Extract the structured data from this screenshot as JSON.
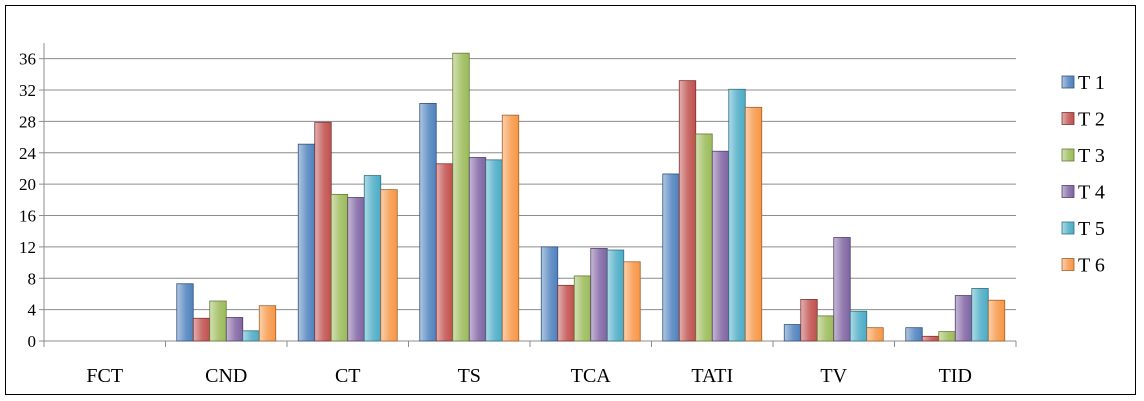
{
  "chart_data": {
    "type": "bar",
    "title": "",
    "xlabel": "",
    "ylabel": "",
    "categories": [
      "FCT",
      "CND",
      "CT",
      "TS",
      "TCA",
      "TATI",
      "TV",
      "TID"
    ],
    "ylim": [
      0,
      38
    ],
    "yticks": [
      0,
      4,
      8,
      12,
      16,
      20,
      24,
      28,
      32,
      36
    ],
    "grid": true,
    "legend_position": "right",
    "series": [
      {
        "name": "T 1",
        "color": "#4F81BD",
        "values": [
          0,
          7.3,
          25.1,
          30.3,
          12.0,
          21.3,
          2.1,
          1.7
        ]
      },
      {
        "name": "T 2",
        "color": "#C0504D",
        "values": [
          0,
          2.9,
          27.9,
          22.6,
          7.1,
          33.2,
          5.3,
          0.6
        ]
      },
      {
        "name": "T 3",
        "color": "#9BBB59",
        "values": [
          0,
          5.1,
          18.7,
          36.7,
          8.3,
          26.4,
          3.2,
          1.2
        ]
      },
      {
        "name": "T 4",
        "color": "#8064A2",
        "values": [
          0,
          3.0,
          18.3,
          23.4,
          11.8,
          24.2,
          13.2,
          5.8
        ]
      },
      {
        "name": "T 5",
        "color": "#4BACC6",
        "values": [
          0,
          1.3,
          21.1,
          23.1,
          11.6,
          32.1,
          3.8,
          6.7
        ]
      },
      {
        "name": "T 6",
        "color": "#F79646",
        "values": [
          0,
          4.5,
          19.3,
          28.8,
          10.1,
          29.8,
          1.7,
          5.2
        ]
      }
    ]
  }
}
